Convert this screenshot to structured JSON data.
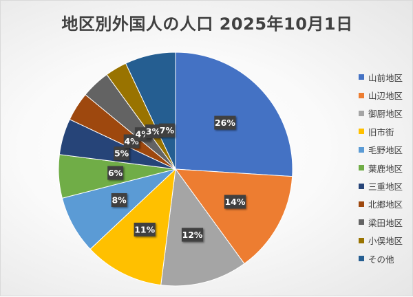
{
  "chart_data": {
    "type": "pie",
    "title": "地区別外国人の人口 2025年10月1日",
    "categories": [
      "山前地区",
      "山辺地区",
      "御厨地区",
      "旧市街",
      "毛野地区",
      "葉鹿地区",
      "三重地区",
      "北郷地区",
      "梁田地区",
      "小俣地区",
      "その他"
    ],
    "values": [
      26,
      14,
      12,
      11,
      8,
      6,
      5,
      4,
      4,
      3,
      7
    ],
    "data_labels": [
      "26%",
      "14%",
      "12%",
      "11%",
      "8%",
      "6%",
      "5%",
      "4%",
      "4%",
      "3%",
      "7%"
    ],
    "colors": [
      "#4472C4",
      "#ED7D31",
      "#A5A5A5",
      "#FFC000",
      "#5B9BD5",
      "#70AD47",
      "#264478",
      "#9E480E",
      "#636363",
      "#997300",
      "#255E91"
    ],
    "legend_position": "right"
  }
}
